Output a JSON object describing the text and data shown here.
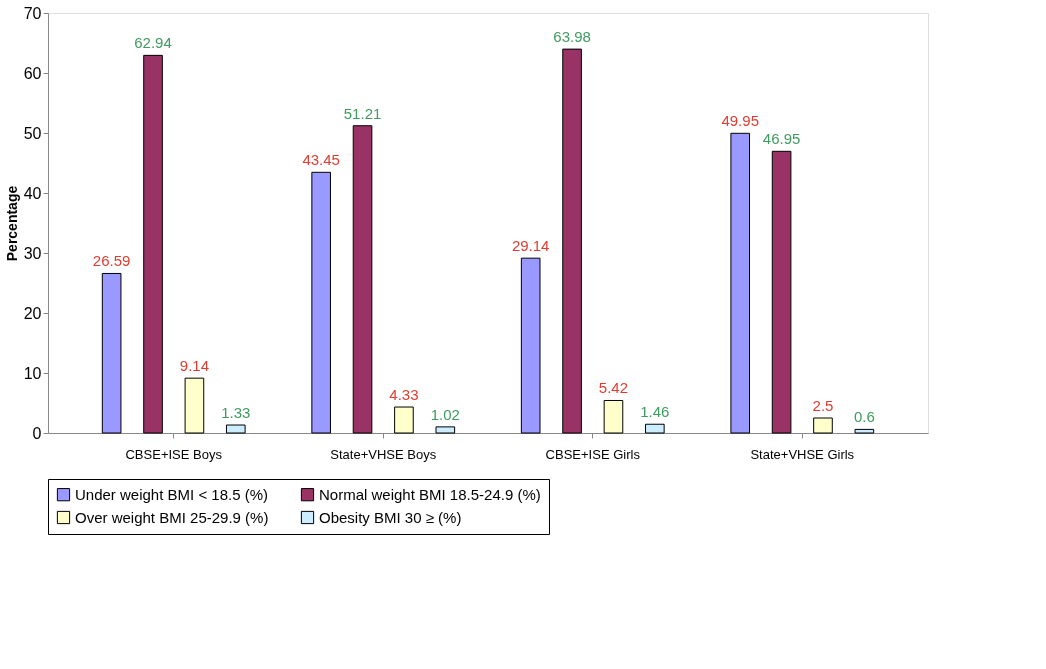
{
  "chart_data": {
    "type": "bar",
    "ylabel": "Percentage",
    "categories": [
      "CBSE+ISE Boys",
      "State+VHSE Boys",
      "CBSE+ISE Girls",
      "State+VHSE Girls"
    ],
    "series": [
      {
        "name": "Under weight BMI < 18.5 (%)",
        "color": "#9999ff",
        "values": [
          26.59,
          43.45,
          29.14,
          49.95
        ]
      },
      {
        "name": "Normal weight BMI 18.5-24.9 (%)",
        "color": "#993366",
        "values": [
          62.94,
          51.21,
          63.98,
          46.95
        ]
      },
      {
        "name": "Over weight BMI 25-29.9 (%)",
        "color": "#ffffcc",
        "values": [
          9.14,
          4.33,
          5.42,
          2.5
        ]
      },
      {
        "name": "Obesity BMI 30 ≥ (%)",
        "color": "#ccecff",
        "values": [
          1.33,
          1.02,
          1.46,
          0.6
        ]
      }
    ],
    "ylim": [
      0,
      70
    ],
    "yticks": [
      0,
      10,
      20,
      30,
      40,
      50,
      60,
      70
    ],
    "grid": false,
    "legend": "bottom",
    "data_labels": true
  }
}
